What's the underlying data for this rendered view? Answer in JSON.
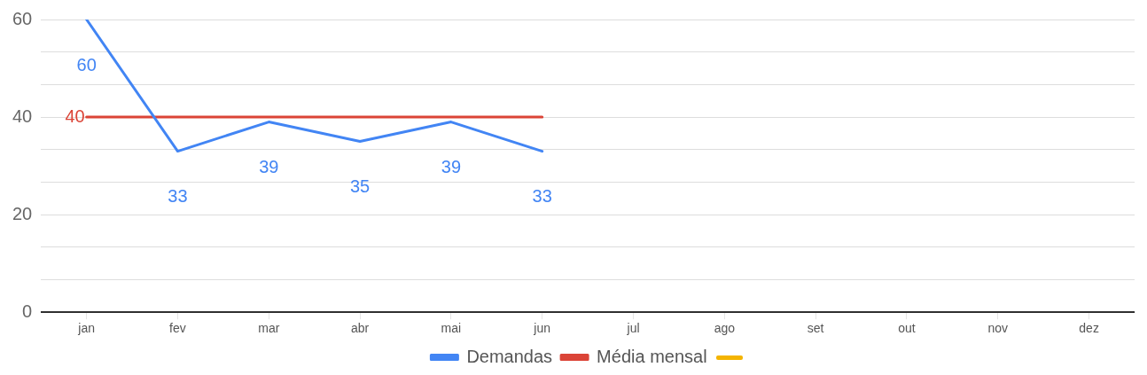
{
  "chart_data": {
    "type": "line",
    "categories": [
      "jan",
      "fev",
      "mar",
      "abr",
      "mai",
      "jun",
      "jul",
      "ago",
      "set",
      "out",
      "nov",
      "dez"
    ],
    "series": [
      {
        "name": "Demandas",
        "color": "#4285f4",
        "values": [
          60,
          33,
          39,
          35,
          39,
          33,
          null,
          null,
          null,
          null,
          null,
          null
        ],
        "value_labels": [
          "60",
          "33",
          "39",
          "35",
          "39",
          "33",
          null,
          null,
          null,
          null,
          null,
          null
        ]
      },
      {
        "name": "Média mensal",
        "color": "#db4437",
        "values": [
          40,
          40,
          40,
          40,
          40,
          40,
          null,
          null,
          null,
          null,
          null,
          null
        ],
        "value_labels": [
          "40",
          null,
          null,
          null,
          null,
          null,
          null,
          null,
          null,
          null,
          null,
          null
        ]
      },
      {
        "color": "#f4b400",
        "values": [
          null,
          null,
          null,
          null,
          null,
          null,
          null,
          null,
          null,
          null,
          null,
          null
        ]
      }
    ],
    "ylim": [
      0,
      60
    ],
    "yticks": [
      0,
      {
        "value": 6.67,
        "label": null
      },
      {
        "value": 13.33,
        "label": null
      },
      20,
      {
        "value": 26.67,
        "label": null
      },
      {
        "value": 33.33,
        "label": null
      },
      40,
      {
        "value": 46.67,
        "label": null
      },
      {
        "value": 53.33,
        "label": null
      },
      60
    ],
    "grid": true,
    "legend": "bottom",
    "marker": "none",
    "line_style": "solid"
  }
}
